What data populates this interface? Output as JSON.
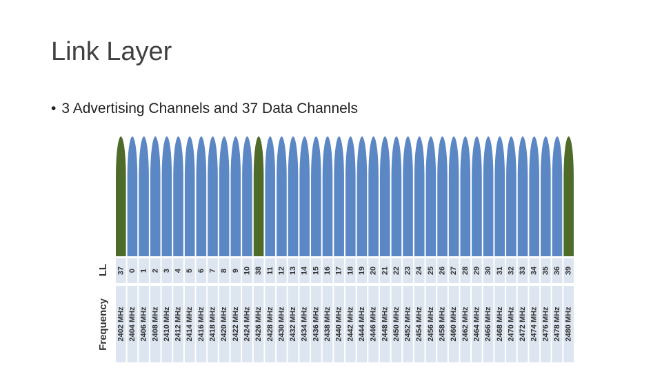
{
  "slide": {
    "title": "Link Layer",
    "bullet": "3 Advertising Channels and 37 Data Channels"
  },
  "chart_data": {
    "type": "bar",
    "row_labels": {
      "ll": "LL",
      "frequency": "Frequency"
    },
    "colors": {
      "data_channel": "#5b87c5",
      "advertising_channel": "#4f6b2a",
      "label_cell": "#dde5f0"
    },
    "channels": [
      {
        "ll": "37",
        "freq": "2402 MHz",
        "kind": "advertising"
      },
      {
        "ll": "0",
        "freq": "2404 MHz",
        "kind": "data"
      },
      {
        "ll": "1",
        "freq": "2406 MHz",
        "kind": "data"
      },
      {
        "ll": "2",
        "freq": "2408 MHz",
        "kind": "data"
      },
      {
        "ll": "3",
        "freq": "2410 MHz",
        "kind": "data"
      },
      {
        "ll": "4",
        "freq": "2412 MHz",
        "kind": "data"
      },
      {
        "ll": "5",
        "freq": "2414 MHz",
        "kind": "data"
      },
      {
        "ll": "6",
        "freq": "2416 MHz",
        "kind": "data"
      },
      {
        "ll": "7",
        "freq": "2418 MHz",
        "kind": "data"
      },
      {
        "ll": "8",
        "freq": "2420 MHz",
        "kind": "data"
      },
      {
        "ll": "9",
        "freq": "2422 MHz",
        "kind": "data"
      },
      {
        "ll": "10",
        "freq": "2424 MHz",
        "kind": "data"
      },
      {
        "ll": "38",
        "freq": "2426 MHz",
        "kind": "advertising"
      },
      {
        "ll": "11",
        "freq": "2428 MHz",
        "kind": "data"
      },
      {
        "ll": "12",
        "freq": "2430 MHz",
        "kind": "data"
      },
      {
        "ll": "13",
        "freq": "2432 MHz",
        "kind": "data"
      },
      {
        "ll": "14",
        "freq": "2434 MHz",
        "kind": "data"
      },
      {
        "ll": "15",
        "freq": "2436 MHz",
        "kind": "data"
      },
      {
        "ll": "16",
        "freq": "2438 MHz",
        "kind": "data"
      },
      {
        "ll": "17",
        "freq": "2440 MHz",
        "kind": "data"
      },
      {
        "ll": "18",
        "freq": "2442 MHz",
        "kind": "data"
      },
      {
        "ll": "19",
        "freq": "2444 MHz",
        "kind": "data"
      },
      {
        "ll": "20",
        "freq": "2446 MHz",
        "kind": "data"
      },
      {
        "ll": "21",
        "freq": "2448 MHz",
        "kind": "data"
      },
      {
        "ll": "22",
        "freq": "2450 MHz",
        "kind": "data"
      },
      {
        "ll": "23",
        "freq": "2452 MHz",
        "kind": "data"
      },
      {
        "ll": "24",
        "freq": "2454 MHz",
        "kind": "data"
      },
      {
        "ll": "25",
        "freq": "2456 MHz",
        "kind": "data"
      },
      {
        "ll": "26",
        "freq": "2458 MHz",
        "kind": "data"
      },
      {
        "ll": "27",
        "freq": "2460 MHz",
        "kind": "data"
      },
      {
        "ll": "28",
        "freq": "2462 MHz",
        "kind": "data"
      },
      {
        "ll": "29",
        "freq": "2464 MHz",
        "kind": "data"
      },
      {
        "ll": "30",
        "freq": "2466 MHz",
        "kind": "data"
      },
      {
        "ll": "31",
        "freq": "2468 MHz",
        "kind": "data"
      },
      {
        "ll": "32",
        "freq": "2470 MHz",
        "kind": "data"
      },
      {
        "ll": "33",
        "freq": "2472 MHz",
        "kind": "data"
      },
      {
        "ll": "34",
        "freq": "2474 MHz",
        "kind": "data"
      },
      {
        "ll": "35",
        "freq": "2476 MHz",
        "kind": "data"
      },
      {
        "ll": "36",
        "freq": "2478 MHz",
        "kind": "data"
      },
      {
        "ll": "39",
        "freq": "2480 MHz",
        "kind": "advertising"
      }
    ]
  }
}
